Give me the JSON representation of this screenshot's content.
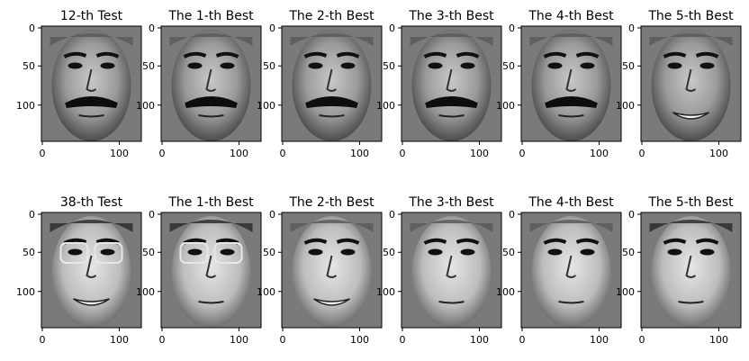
{
  "figure": {
    "rows": [
      {
        "panels": [
          {
            "title": "12-th Test",
            "face": "man-glasses-less-mustache-test"
          },
          {
            "title": "The 1-th Best",
            "face": "man-mustache-match"
          },
          {
            "title": "The 2-th Best",
            "face": "man-mustache-dark-brows"
          },
          {
            "title": "The 3-th Best",
            "face": "man-mustache-bold"
          },
          {
            "title": "The 4-th Best",
            "face": "man-thin-mustache"
          },
          {
            "title": "The 5-th Best",
            "face": "older-man-smiling"
          }
        ]
      },
      {
        "panels": [
          {
            "title": "38-th Test",
            "face": "woman-glasses-smiling-test"
          },
          {
            "title": "The 1-th Best",
            "face": "woman-glasses-match"
          },
          {
            "title": "The 2-th Best",
            "face": "young-man-smiling"
          },
          {
            "title": "The 3-th Best",
            "face": "young-person-freckles"
          },
          {
            "title": "The 4-th Best",
            "face": "young-person-neutral"
          },
          {
            "title": "The 5-th Best",
            "face": "older-woman"
          }
        ]
      }
    ],
    "y_ticks": [
      "0",
      "50",
      "100"
    ],
    "x_ticks": [
      "0",
      "100"
    ]
  }
}
